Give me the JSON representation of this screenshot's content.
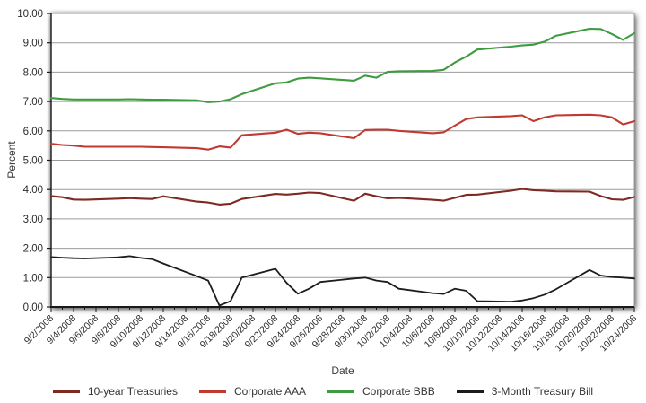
{
  "chart_data": {
    "type": "line",
    "title": "",
    "xlabel": "Date",
    "ylabel": "Percent",
    "ylim": [
      0,
      10
    ],
    "ytick_labels": [
      "0.00",
      "1.00",
      "2.00",
      "3.00",
      "4.00",
      "5.00",
      "6.00",
      "7.00",
      "8.00",
      "9.00",
      "10.00"
    ],
    "grid": true,
    "legend_position": "bottom",
    "x_axis": {
      "total_days": 52,
      "tick_labels": [
        "9/2/2008",
        "9/4/2008",
        "9/6/2008",
        "9/8/2008",
        "9/10/2008",
        "9/12/2008",
        "9/14/2008",
        "9/16/2008",
        "9/18/2008",
        "9/20/2008",
        "9/22/2008",
        "9/24/2008",
        "9/26/2008",
        "9/28/2008",
        "9/30/2008",
        "10/2/2008",
        "10/4/2008",
        "10/6/2008",
        "10/8/2008",
        "10/10/2008",
        "10/12/2008",
        "10/14/2008",
        "10/16/2008",
        "10/18/2008",
        "10/20/2008",
        "10/22/2008",
        "10/24/2008"
      ],
      "tick_label_day_offsets": [
        0,
        2,
        4,
        6,
        8,
        10,
        12,
        14,
        16,
        18,
        20,
        22,
        24,
        26,
        28,
        30,
        32,
        34,
        36,
        38,
        40,
        42,
        44,
        46,
        48,
        50,
        52
      ]
    },
    "dates": [
      "9/2/2008",
      "9/3/2008",
      "9/4/2008",
      "9/5/2008",
      "9/8/2008",
      "9/9/2008",
      "9/10/2008",
      "9/11/2008",
      "9/12/2008",
      "9/15/2008",
      "9/16/2008",
      "9/17/2008",
      "9/18/2008",
      "9/19/2008",
      "9/22/2008",
      "9/23/2008",
      "9/24/2008",
      "9/25/2008",
      "9/26/2008",
      "9/29/2008",
      "9/30/2008",
      "10/1/2008",
      "10/2/2008",
      "10/3/2008",
      "10/6/2008",
      "10/7/2008",
      "10/8/2008",
      "10/9/2008",
      "10/10/2008",
      "10/13/2008",
      "10/14/2008",
      "10/15/2008",
      "10/16/2008",
      "10/17/2008",
      "10/20/2008",
      "10/21/2008",
      "10/22/2008",
      "10/23/2008",
      "10/24/2008"
    ],
    "day_offsets": [
      0,
      1,
      2,
      3,
      6,
      7,
      8,
      9,
      10,
      13,
      14,
      15,
      16,
      17,
      20,
      21,
      22,
      23,
      24,
      27,
      28,
      29,
      30,
      31,
      34,
      35,
      36,
      37,
      38,
      41,
      42,
      43,
      44,
      45,
      48,
      49,
      50,
      51,
      52
    ],
    "series": [
      {
        "name": "10-year Treasuries",
        "color": "#7E2A23",
        "width": 2.1,
        "values": [
          3.78,
          3.74,
          3.66,
          3.65,
          3.69,
          3.71,
          3.69,
          3.68,
          3.77,
          3.59,
          3.56,
          3.49,
          3.52,
          3.68,
          3.85,
          3.83,
          3.86,
          3.9,
          3.88,
          3.62,
          3.86,
          3.77,
          3.7,
          3.72,
          3.65,
          3.62,
          3.72,
          3.82,
          3.83,
          3.96,
          4.02,
          3.98,
          3.96,
          3.94,
          3.93,
          3.78,
          3.67,
          3.65,
          3.75
        ]
      },
      {
        "name": "Corporate AAA",
        "color": "#C03A32",
        "width": 2.1,
        "values": [
          5.56,
          5.52,
          5.5,
          5.46,
          5.46,
          5.46,
          5.46,
          5.45,
          5.44,
          5.41,
          5.36,
          5.47,
          5.43,
          5.85,
          5.94,
          6.04,
          5.9,
          5.94,
          5.92,
          5.75,
          6.03,
          6.04,
          6.04,
          6.0,
          5.92,
          5.95,
          6.18,
          6.4,
          6.46,
          6.5,
          6.53,
          6.33,
          6.46,
          6.53,
          6.55,
          6.53,
          6.46,
          6.22,
          6.33
        ]
      },
      {
        "name": "Corporate BBB",
        "color": "#3E9B41",
        "width": 2.1,
        "values": [
          7.12,
          7.09,
          7.07,
          7.07,
          7.07,
          7.08,
          7.07,
          7.06,
          7.06,
          7.04,
          6.98,
          7.0,
          7.08,
          7.25,
          7.62,
          7.65,
          7.78,
          7.81,
          7.79,
          7.71,
          7.88,
          7.81,
          8.01,
          8.03,
          8.04,
          8.08,
          8.33,
          8.53,
          8.77,
          8.87,
          8.91,
          8.94,
          9.04,
          9.24,
          9.48,
          9.47,
          9.3,
          9.1,
          9.33
        ]
      },
      {
        "name": "3-Month Treasury Bill",
        "color": "#1C1C1C",
        "width": 1.8,
        "values": [
          1.7,
          1.68,
          1.66,
          1.65,
          1.69,
          1.73,
          1.67,
          1.63,
          1.48,
          1.05,
          0.9,
          0.05,
          0.2,
          1.0,
          1.3,
          0.82,
          0.45,
          0.62,
          0.85,
          0.97,
          1.0,
          0.9,
          0.85,
          0.62,
          0.47,
          0.44,
          0.62,
          0.55,
          0.2,
          0.18,
          0.22,
          0.3,
          0.42,
          0.6,
          1.26,
          1.07,
          1.02,
          1.0,
          0.97
        ]
      }
    ]
  },
  "colors": {
    "gridline": "#9B9B9B",
    "axis": "#1A1A1A",
    "tick_text": "#2B2B2B",
    "background": "#FFFFFF"
  }
}
